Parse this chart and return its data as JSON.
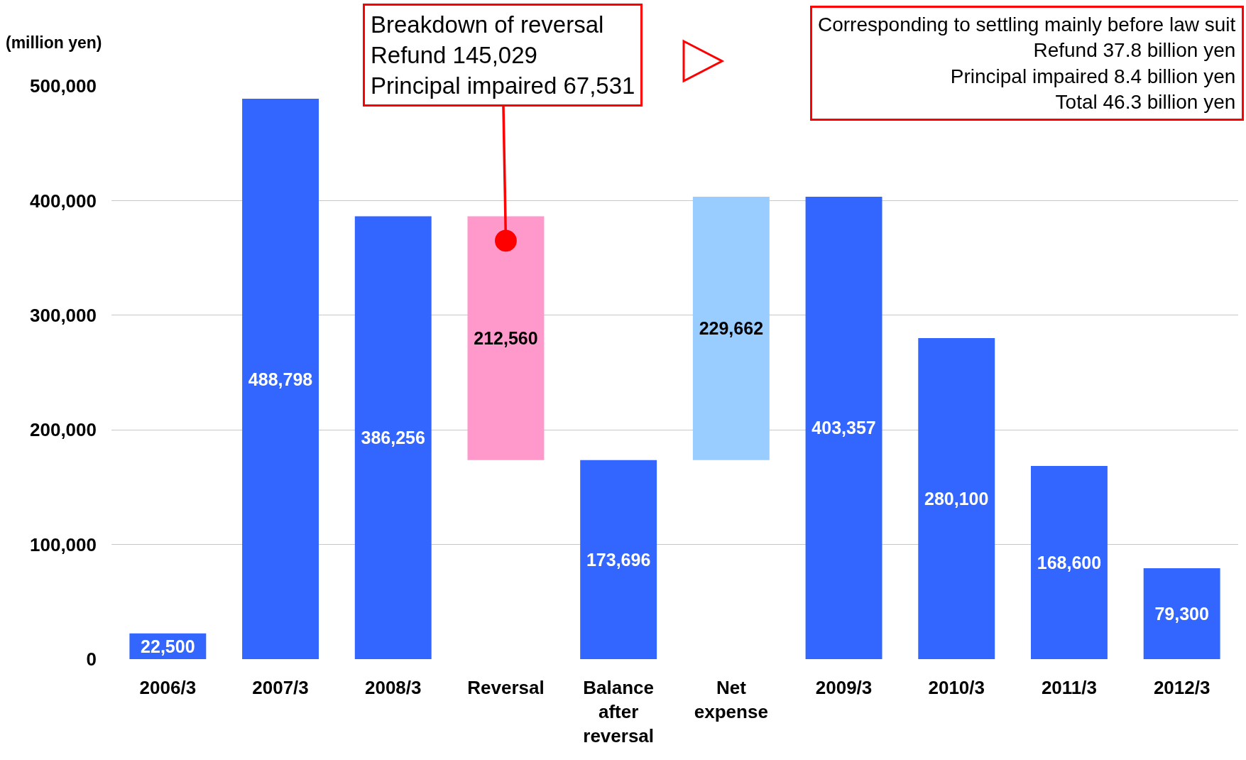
{
  "chart_data": {
    "type": "bar",
    "ylabel": "(million yen)",
    "categories": [
      "2006/3",
      "2007/3",
      "2008/3",
      "Reversal",
      "Balance after reversal",
      "Net expense",
      "2009/3",
      "2010/3",
      "2011/3",
      "2012/3"
    ],
    "values": [
      22500,
      488798,
      386256,
      212560,
      173696,
      229662,
      403357,
      280100,
      168600,
      79300
    ],
    "base": [
      0,
      0,
      0,
      173696,
      0,
      173696,
      0,
      0,
      0,
      0
    ],
    "colors": [
      "#3366ff",
      "#3366ff",
      "#3366ff",
      "#ff99cc",
      "#3366ff",
      "#99ccff",
      "#3366ff",
      "#3366ff",
      "#3366ff",
      "#3366ff"
    ],
    "value_labels": [
      "22,500",
      "488,798",
      "386,256",
      "212,560",
      "173,696",
      "229,662",
      "403,357",
      "280,100",
      "168,600",
      "79,300"
    ],
    "ylim": [
      0,
      500000
    ],
    "yticks": [
      {
        "value": 0,
        "label": "0"
      },
      {
        "value": 100000,
        "label": "100,000"
      },
      {
        "value": 200000,
        "label": "200,000"
      },
      {
        "value": 300000,
        "label": "300,000"
      },
      {
        "value": 400000,
        "label": "400,000"
      },
      {
        "value": 500000,
        "label": "500,000"
      }
    ],
    "grid": "y",
    "annotations": [
      {
        "text": "Breakdown of reversal\nRefund 145,029\nPrincipal impaired 67,531",
        "x": "Reversal",
        "y": 365000
      },
      "Corresponding to settling mainly before law suit\nRefund 37.8 billion yen\nPrincipal impaired 8.4 billion yen\nTotal 46.3 billion yen"
    ]
  }
}
